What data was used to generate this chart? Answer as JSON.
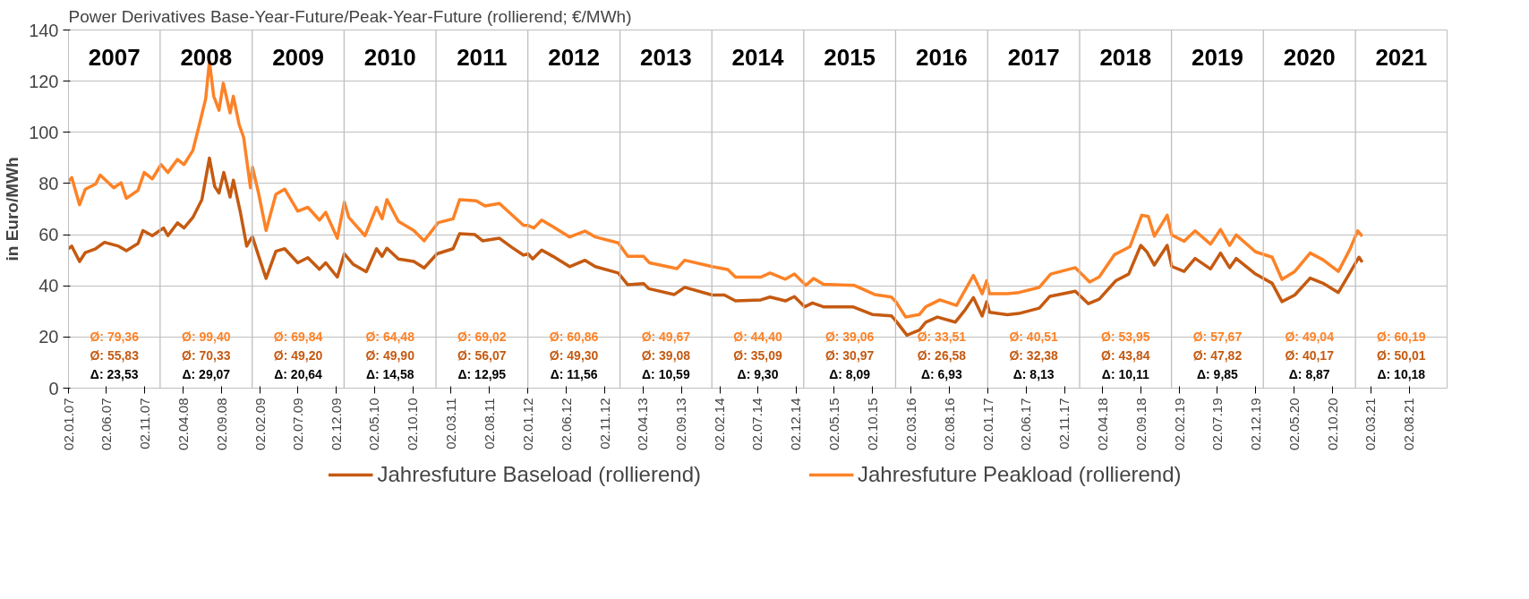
{
  "chart_data": {
    "type": "line",
    "title": "Power Derivatives Base-Year-Future/Peak-Year-Future (rollierend; €/MWh)",
    "ylabel": "in Euro/MWh",
    "xlim": [
      "2007-01-02",
      "2021-12-31"
    ],
    "ylim": [
      0,
      140
    ],
    "yticks": [
      0,
      20,
      40,
      60,
      80,
      100,
      120,
      140
    ],
    "xticks": [
      {
        "value": "2007-01-02",
        "label": "02.01.07"
      },
      {
        "value": "2007-06-02",
        "label": "02.06.07"
      },
      {
        "value": "2007-11-02",
        "label": "02.11.07"
      },
      {
        "value": "2008-04-02",
        "label": "02.04.08"
      },
      {
        "value": "2008-09-02",
        "label": "02.09.08"
      },
      {
        "value": "2009-02-02",
        "label": "02.02.09"
      },
      {
        "value": "2009-07-02",
        "label": "02.07.09"
      },
      {
        "value": "2009-12-02",
        "label": "02.12.09"
      },
      {
        "value": "2010-05-02",
        "label": "02.05.10"
      },
      {
        "value": "2010-10-02",
        "label": "02.10.10"
      },
      {
        "value": "2011-03-02",
        "label": "02.03.11"
      },
      {
        "value": "2011-08-02",
        "label": "02.08.11"
      },
      {
        "value": "2012-01-02",
        "label": "02.01.12"
      },
      {
        "value": "2012-06-02",
        "label": "02.06.12"
      },
      {
        "value": "2012-11-02",
        "label": "02.11.12"
      },
      {
        "value": "2013-04-02",
        "label": "02.04.13"
      },
      {
        "value": "2013-09-02",
        "label": "02.09.13"
      },
      {
        "value": "2014-02-02",
        "label": "02.02.14"
      },
      {
        "value": "2014-07-02",
        "label": "02.07.14"
      },
      {
        "value": "2014-12-02",
        "label": "02.12.14"
      },
      {
        "value": "2015-05-02",
        "label": "02.05.15"
      },
      {
        "value": "2015-10-02",
        "label": "02.10.15"
      },
      {
        "value": "2016-03-02",
        "label": "02.03.16"
      },
      {
        "value": "2016-08-02",
        "label": "02.08.16"
      },
      {
        "value": "2017-01-02",
        "label": "02.01.17"
      },
      {
        "value": "2017-06-02",
        "label": "02.06.17"
      },
      {
        "value": "2017-11-02",
        "label": "02.11.17"
      },
      {
        "value": "2018-04-02",
        "label": "02.04.18"
      },
      {
        "value": "2018-09-02",
        "label": "02.09.18"
      },
      {
        "value": "2019-02-02",
        "label": "02.02.19"
      },
      {
        "value": "2019-07-02",
        "label": "02.07.19"
      },
      {
        "value": "2019-12-02",
        "label": "02.12.19"
      },
      {
        "value": "2020-05-02",
        "label": "02.05.20"
      },
      {
        "value": "2020-10-02",
        "label": "02.10.20"
      },
      {
        "value": "2021-03-02",
        "label": "02.03.21"
      },
      {
        "value": "2021-08-02",
        "label": "02.08.21"
      }
    ],
    "grid": "y",
    "legend": "bottom",
    "line_style": "solid",
    "marker": "none",
    "series": [
      {
        "name": "Jahresfuture Baseload (rollierend)",
        "color": "#c55a11",
        "x": [
          "2007-01-02",
          "2007-01-15",
          "2007-02-15",
          "2007-03-10",
          "2007-04-20",
          "2007-05-25",
          "2007-07-20",
          "2007-08-20",
          "2007-10-05",
          "2007-10-25",
          "2007-12-01",
          "2008-01-15",
          "2008-02-01",
          "2008-03-10",
          "2008-04-05",
          "2008-05-10",
          "2008-06-15",
          "2008-07-15",
          "2008-08-05",
          "2008-08-22",
          "2008-09-10",
          "2008-10-05",
          "2008-10-18",
          "2008-11-15",
          "2008-12-10",
          "2008-12-28",
          "2009-01-02",
          "2009-01-27",
          "2009-02-25",
          "2009-04-05",
          "2009-05-10",
          "2009-07-01",
          "2009-08-10",
          "2009-09-25",
          "2009-10-20",
          "2009-12-05",
          "2010-01-02",
          "2010-02-05",
          "2010-03-30",
          "2010-05-10",
          "2010-06-01",
          "2010-06-20",
          "2010-08-05",
          "2010-10-05",
          "2010-11-15",
          "2011-01-05",
          "2011-03-10",
          "2011-04-05",
          "2011-06-05",
          "2011-07-05",
          "2011-09-10",
          "2011-10-30",
          "2011-12-15",
          "2012-01-02",
          "2012-01-20",
          "2012-02-25",
          "2012-04-10",
          "2012-06-15",
          "2012-08-15",
          "2012-09-25",
          "2012-12-25",
          "2013-02-01",
          "2013-04-05",
          "2013-04-25",
          "2013-08-05",
          "2013-09-15",
          "2014-01-02",
          "2014-02-20",
          "2014-04-05",
          "2014-07-15",
          "2014-08-20",
          "2014-10-20",
          "2014-11-25",
          "2015-01-05",
          "2015-02-05",
          "2015-03-20",
          "2015-07-15",
          "2015-09-30",
          "2015-12-15",
          "2016-01-02",
          "2016-02-15",
          "2016-04-05",
          "2016-04-30",
          "2016-06-15",
          "2016-08-25",
          "2016-10-01",
          "2016-11-05",
          "2016-12-10",
          "2016-12-28",
          "2017-01-08",
          "2017-03-20",
          "2017-05-05",
          "2017-07-25",
          "2017-09-05",
          "2017-12-15",
          "2018-02-05",
          "2018-03-20",
          "2018-05-25",
          "2018-07-15",
          "2018-09-01",
          "2018-09-25",
          "2018-10-25",
          "2018-12-15",
          "2019-01-02",
          "2019-02-20",
          "2019-04-05",
          "2019-06-05",
          "2019-07-15",
          "2019-08-20",
          "2019-09-15",
          "2019-12-01",
          "2020-02-05",
          "2020-03-15",
          "2020-05-05",
          "2020-07-05",
          "2020-08-25",
          "2020-10-25",
          "2020-12-10",
          "2021-01-15",
          "2021-01-28"
        ],
        "values": [
          54.5,
          55.5,
          49.5,
          53,
          54.5,
          57,
          55.5,
          53.7,
          56.5,
          61.6,
          59.6,
          62.6,
          59.6,
          64.6,
          62.6,
          66.7,
          73.7,
          89.9,
          78.8,
          76.3,
          84.3,
          74.7,
          81.3,
          68.7,
          55.5,
          58.6,
          59.1,
          51.5,
          42.9,
          53.5,
          54.5,
          49,
          51,
          46.5,
          49,
          43.4,
          52.5,
          48.5,
          45.5,
          54.5,
          51.5,
          54.7,
          50.5,
          49.5,
          47,
          52.5,
          54.5,
          60.4,
          60,
          57.6,
          58.6,
          55,
          52,
          52.5,
          50.5,
          54,
          51.5,
          47.5,
          50,
          47.5,
          45,
          40.4,
          40.9,
          38.9,
          36.6,
          39.4,
          36.4,
          36.4,
          34.1,
          34.5,
          35.6,
          34.1,
          35.8,
          31.8,
          33.3,
          31.8,
          31.8,
          28.8,
          28.3,
          26.3,
          20.7,
          22.7,
          25.8,
          27.8,
          25.8,
          30.3,
          35.4,
          28.2,
          33.8,
          29.7,
          28.7,
          29.2,
          31.3,
          35.9,
          37.9,
          33,
          34.8,
          42,
          44.6,
          55.8,
          53.3,
          48.1,
          55.8,
          47.6,
          45.6,
          50.7,
          46.6,
          52.8,
          47.1,
          50.7,
          44.6,
          41,
          33.8,
          36.4,
          43,
          41,
          37.4,
          45.1,
          51.2,
          49.2
        ]
      },
      {
        "name": "Jahresfuture Peakload (rollierend)",
        "color": "#fd8226",
        "x": [
          "2007-01-02",
          "2007-01-15",
          "2007-02-15",
          "2007-03-10",
          "2007-04-20",
          "2007-05-08",
          "2007-07-01",
          "2007-07-30",
          "2007-08-20",
          "2007-10-05",
          "2007-10-30",
          "2007-12-01",
          "2008-01-05",
          "2008-02-01",
          "2008-03-10",
          "2008-04-05",
          "2008-05-10",
          "2008-06-05",
          "2008-06-30",
          "2008-07-15",
          "2008-08-01",
          "2008-08-22",
          "2008-09-08",
          "2008-10-05",
          "2008-10-18",
          "2008-11-10",
          "2008-11-28",
          "2008-12-25",
          "2009-01-02",
          "2009-01-27",
          "2009-02-25",
          "2009-04-05",
          "2009-05-10",
          "2009-07-01",
          "2009-08-10",
          "2009-09-25",
          "2009-10-20",
          "2009-12-05",
          "2010-01-02",
          "2010-01-20",
          "2010-03-25",
          "2010-05-10",
          "2010-06-01",
          "2010-06-20",
          "2010-08-05",
          "2010-10-05",
          "2010-11-15",
          "2011-01-10",
          "2011-03-10",
          "2011-04-05",
          "2011-06-10",
          "2011-07-15",
          "2011-09-10",
          "2011-10-30",
          "2011-12-15",
          "2012-01-02",
          "2012-01-25",
          "2012-02-25",
          "2012-04-10",
          "2012-06-15",
          "2012-08-15",
          "2012-09-25",
          "2012-12-25",
          "2013-02-01",
          "2013-04-05",
          "2013-04-28",
          "2013-08-15",
          "2013-09-15",
          "2014-01-02",
          "2014-03-05",
          "2014-04-05",
          "2014-07-15",
          "2014-08-20",
          "2014-10-20",
          "2014-11-25",
          "2015-01-10",
          "2015-02-10",
          "2015-03-20",
          "2015-07-20",
          "2015-10-10",
          "2015-12-15",
          "2016-01-02",
          "2016-02-10",
          "2016-04-05",
          "2016-04-30",
          "2016-06-25",
          "2016-08-30",
          "2016-11-05",
          "2016-12-10",
          "2016-12-28",
          "2017-01-08",
          "2017-03-20",
          "2017-05-05",
          "2017-07-25",
          "2017-09-08",
          "2017-12-15",
          "2018-02-10",
          "2018-03-20",
          "2018-05-20",
          "2018-07-20",
          "2018-09-05",
          "2018-10-01",
          "2018-10-25",
          "2018-12-15",
          "2019-01-02",
          "2019-02-20",
          "2019-04-05",
          "2019-06-05",
          "2019-07-15",
          "2019-08-20",
          "2019-09-15",
          "2019-12-01",
          "2020-02-05",
          "2020-03-15",
          "2020-05-05",
          "2020-07-05",
          "2020-08-25",
          "2020-10-25",
          "2020-12-10",
          "2021-01-10",
          "2021-01-28"
        ],
        "values": [
          80.8,
          82.3,
          71.7,
          77.8,
          79.8,
          83.3,
          78.3,
          80.3,
          74.2,
          77.3,
          84.3,
          81.8,
          87.4,
          84.3,
          89.4,
          87.4,
          92.9,
          103,
          113.1,
          127.8,
          114.1,
          108.6,
          119.2,
          107.6,
          114.1,
          103,
          98,
          78.3,
          86.4,
          75.8,
          61.6,
          75.8,
          77.8,
          69.2,
          70.7,
          65.7,
          68.7,
          58.6,
          72.7,
          66.7,
          59.6,
          70.7,
          66.2,
          73.7,
          65.2,
          61.6,
          57.6,
          64.7,
          66.2,
          73.7,
          73.2,
          71.2,
          72.2,
          67.7,
          63.6,
          63.6,
          62.6,
          65.7,
          63.1,
          59.1,
          61.4,
          59.1,
          56.8,
          51.5,
          51.5,
          49,
          46.7,
          50,
          47.5,
          46.4,
          43.4,
          43.4,
          45,
          42.6,
          44.6,
          40.2,
          42.9,
          40.6,
          40.2,
          36.6,
          35.6,
          33.8,
          27.8,
          28.8,
          31.8,
          34.5,
          32.3,
          44.1,
          36.9,
          42,
          36.9,
          36.9,
          37.4,
          39.4,
          44.6,
          47.1,
          41.5,
          43.5,
          52.2,
          55.3,
          67.6,
          67.1,
          59.4,
          67.6,
          59.9,
          57.4,
          61.5,
          56.3,
          62,
          55.8,
          59.9,
          53.3,
          51.2,
          42.5,
          45.6,
          52.8,
          50.2,
          45.6,
          54.3,
          61.5,
          59.4
        ]
      }
    ],
    "ref_lines": [
      {
        "axis": "x",
        "value": "2008-01-01",
        "color": "#bfbfbf"
      },
      {
        "axis": "x",
        "value": "2009-01-01",
        "color": "#bfbfbf"
      },
      {
        "axis": "x",
        "value": "2010-01-01",
        "color": "#bfbfbf"
      },
      {
        "axis": "x",
        "value": "2011-01-01",
        "color": "#bfbfbf"
      },
      {
        "axis": "x",
        "value": "2012-01-01",
        "color": "#bfbfbf"
      },
      {
        "axis": "x",
        "value": "2013-01-01",
        "color": "#bfbfbf"
      },
      {
        "axis": "x",
        "value": "2014-01-01",
        "color": "#bfbfbf"
      },
      {
        "axis": "x",
        "value": "2015-01-01",
        "color": "#bfbfbf"
      },
      {
        "axis": "x",
        "value": "2016-01-01",
        "color": "#bfbfbf"
      },
      {
        "axis": "x",
        "value": "2017-01-01",
        "color": "#bfbfbf"
      },
      {
        "axis": "x",
        "value": "2018-01-01",
        "color": "#bfbfbf"
      },
      {
        "axis": "x",
        "value": "2019-01-01",
        "color": "#bfbfbf"
      },
      {
        "axis": "x",
        "value": "2020-01-01",
        "color": "#bfbfbf"
      },
      {
        "axis": "x",
        "value": "2021-01-01",
        "color": "#bfbfbf"
      }
    ],
    "annotations": [
      "2007",
      "2008",
      "2009",
      "2010",
      "2011",
      "2012",
      "2013",
      "2014",
      "2015",
      "2016",
      "2017",
      "2018",
      "2019",
      "2020",
      "2021",
      "Ø: 79,36",
      "Ø: 55,83",
      "Δ: 23,53",
      "Ø: 99,40",
      "Ø: 70,33",
      "Δ: 29,07",
      "Ø: 69,84",
      "Ø: 49,20",
      "Δ: 20,64",
      "Ø: 64,48",
      "Ø: 49,90",
      "Δ: 14,58",
      "Ø: 69,02",
      "Ø: 56,07",
      "Δ: 12,95",
      "Ø: 60,86",
      "Ø: 49,30",
      "Δ: 11,56",
      "Ø: 49,67",
      "Ø: 39,08",
      "Δ: 10,59",
      "Ø: 44,40",
      "Ø: 35,09",
      "Δ: 9,30",
      "Ø: 39,06",
      "Ø: 30,97",
      "Δ: 8,09",
      "Ø: 33,51",
      "Ø: 26,58",
      "Δ: 6,93",
      "Ø: 40,51",
      "Ø: 32,38",
      "Δ: 8,13",
      "Ø: 53,95",
      "Ø: 43,84",
      "Δ: 10,11",
      "Ø: 57,67",
      "Ø: 47,82",
      "Δ: 9,85",
      "Ø: 49,04",
      "Ø: 40,17",
      "Δ: 8,87",
      "Ø: 60,19",
      "Ø: 50,01",
      "Δ: 10,18"
    ]
  }
}
